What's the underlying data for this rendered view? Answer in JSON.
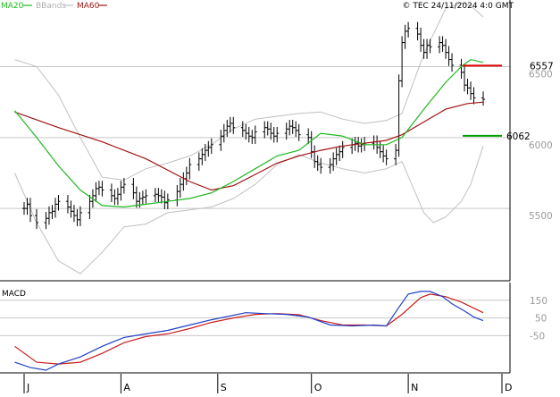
{
  "chart_data": {
    "type": "line",
    "copyright": "© TEC 24/11/2024 4:0 GMT",
    "legend": [
      {
        "label": "MA20",
        "color": "#1fb81f"
      },
      {
        "label": "BBands",
        "color": "#c0c0c0"
      },
      {
        "label": "MA60",
        "color": "#a01414"
      }
    ],
    "price_axis": {
      "ylim": [
        5040,
        7020
      ],
      "ticks": [
        {
          "label": "6500",
          "value": 6500
        },
        {
          "label": "6000",
          "value": 6000
        },
        {
          "label": "5500",
          "value": 5500
        }
      ]
    },
    "x_axis": {
      "start": "2024-07-01",
      "end": "2024-12-10",
      "ticks": [
        {
          "label": "J",
          "date": "2024-07-01"
        },
        {
          "label": "A",
          "date": "2024-08-01"
        },
        {
          "label": "S",
          "date": "2024-09-01"
        },
        {
          "label": "O",
          "date": "2024-10-01"
        },
        {
          "label": "N",
          "date": "2024-11-01"
        },
        {
          "label": "D",
          "date": "2024-12-01"
        }
      ]
    },
    "levels": [
      {
        "label": "6557",
        "value": 6557,
        "color": "#e00000"
      },
      {
        "label": "6062",
        "value": 6062,
        "color": "#00a000"
      }
    ],
    "series_points": {
      "ma20": [
        [
          "2024-06-28",
          6240
        ],
        [
          "2024-07-05",
          6050
        ],
        [
          "2024-07-12",
          5850
        ],
        [
          "2024-07-19",
          5680
        ],
        [
          "2024-07-26",
          5570
        ],
        [
          "2024-08-02",
          5560
        ],
        [
          "2024-08-09",
          5580
        ],
        [
          "2024-08-16",
          5600
        ],
        [
          "2024-08-23",
          5620
        ],
        [
          "2024-08-30",
          5660
        ],
        [
          "2024-09-06",
          5740
        ],
        [
          "2024-09-13",
          5830
        ],
        [
          "2024-09-20",
          5920
        ],
        [
          "2024-09-27",
          5960
        ],
        [
          "2024-10-04",
          6080
        ],
        [
          "2024-10-11",
          6060
        ],
        [
          "2024-10-18",
          6000
        ],
        [
          "2024-10-25",
          6000
        ],
        [
          "2024-10-30",
          6050
        ],
        [
          "2024-11-06",
          6250
        ],
        [
          "2024-11-13",
          6440
        ],
        [
          "2024-11-18",
          6550
        ],
        [
          "2024-11-21",
          6600
        ],
        [
          "2024-11-25",
          6580
        ]
      ],
      "ma60": [
        [
          "2024-06-28",
          6230
        ],
        [
          "2024-07-12",
          6120
        ],
        [
          "2024-07-26",
          6020
        ],
        [
          "2024-08-09",
          5900
        ],
        [
          "2024-08-23",
          5740
        ],
        [
          "2024-08-30",
          5680
        ],
        [
          "2024-09-06",
          5710
        ],
        [
          "2024-09-13",
          5790
        ],
        [
          "2024-09-20",
          5870
        ],
        [
          "2024-09-27",
          5920
        ],
        [
          "2024-10-04",
          5960
        ],
        [
          "2024-10-11",
          5990
        ],
        [
          "2024-10-18",
          6010
        ],
        [
          "2024-10-25",
          6030
        ],
        [
          "2024-10-30",
          6070
        ],
        [
          "2024-11-06",
          6160
        ],
        [
          "2024-11-13",
          6250
        ],
        [
          "2024-11-20",
          6290
        ],
        [
          "2024-11-25",
          6300
        ]
      ],
      "bb_upper": [
        [
          "2024-06-28",
          6600
        ],
        [
          "2024-07-05",
          6550
        ],
        [
          "2024-07-12",
          6350
        ],
        [
          "2024-07-19",
          6050
        ],
        [
          "2024-07-26",
          5770
        ],
        [
          "2024-08-02",
          5750
        ],
        [
          "2024-08-09",
          5830
        ],
        [
          "2024-08-16",
          5870
        ],
        [
          "2024-08-23",
          5920
        ],
        [
          "2024-08-30",
          6000
        ],
        [
          "2024-09-06",
          6110
        ],
        [
          "2024-09-13",
          6180
        ],
        [
          "2024-09-20",
          6200
        ],
        [
          "2024-09-27",
          6220
        ],
        [
          "2024-10-04",
          6230
        ],
        [
          "2024-10-11",
          6180
        ],
        [
          "2024-10-18",
          6150
        ],
        [
          "2024-10-25",
          6170
        ],
        [
          "2024-10-30",
          6220
        ],
        [
          "2024-11-06",
          6640
        ],
        [
          "2024-11-13",
          6960
        ],
        [
          "2024-11-18",
          7000
        ],
        [
          "2024-11-21",
          6980
        ],
        [
          "2024-11-25",
          6900
        ]
      ],
      "bb_lower": [
        [
          "2024-06-28",
          5800
        ],
        [
          "2024-07-05",
          5450
        ],
        [
          "2024-07-12",
          5180
        ],
        [
          "2024-07-19",
          5090
        ],
        [
          "2024-07-26",
          5240
        ],
        [
          "2024-08-02",
          5420
        ],
        [
          "2024-08-09",
          5440
        ],
        [
          "2024-08-16",
          5520
        ],
        [
          "2024-08-23",
          5540
        ],
        [
          "2024-08-30",
          5560
        ],
        [
          "2024-09-06",
          5620
        ],
        [
          "2024-09-13",
          5720
        ],
        [
          "2024-09-20",
          5860
        ],
        [
          "2024-09-27",
          5930
        ],
        [
          "2024-10-04",
          5870
        ],
        [
          "2024-10-11",
          5830
        ],
        [
          "2024-10-18",
          5800
        ],
        [
          "2024-10-25",
          5830
        ],
        [
          "2024-10-30",
          5880
        ],
        [
          "2024-11-06",
          5520
        ],
        [
          "2024-11-09",
          5450
        ],
        [
          "2024-11-13",
          5490
        ],
        [
          "2024-11-18",
          5600
        ],
        [
          "2024-11-21",
          5720
        ],
        [
          "2024-11-25",
          5990
        ]
      ],
      "ohlc_close": [
        [
          "2024-07-01",
          5550
        ],
        [
          "2024-07-02",
          5580
        ],
        [
          "2024-07-03",
          5500
        ],
        [
          "2024-07-05",
          5450
        ],
        [
          "2024-07-08",
          5480
        ],
        [
          "2024-07-09",
          5520
        ],
        [
          "2024-07-10",
          5530
        ],
        [
          "2024-07-11",
          5580
        ],
        [
          "2024-07-12",
          5600
        ],
        [
          "2024-07-15",
          5560
        ],
        [
          "2024-07-16",
          5530
        ],
        [
          "2024-07-17",
          5500
        ],
        [
          "2024-07-18",
          5470
        ],
        [
          "2024-07-19",
          5520
        ],
        [
          "2024-07-22",
          5600
        ],
        [
          "2024-07-23",
          5640
        ],
        [
          "2024-07-24",
          5690
        ],
        [
          "2024-07-25",
          5700
        ],
        [
          "2024-07-26",
          5680
        ],
        [
          "2024-07-29",
          5640
        ],
        [
          "2024-07-30",
          5620
        ],
        [
          "2024-07-31",
          5650
        ],
        [
          "2024-08-01",
          5700
        ],
        [
          "2024-08-02",
          5720
        ],
        [
          "2024-08-05",
          5660
        ],
        [
          "2024-08-06",
          5600
        ],
        [
          "2024-08-07",
          5620
        ],
        [
          "2024-08-08",
          5630
        ],
        [
          "2024-08-09",
          5640
        ],
        [
          "2024-08-12",
          5650
        ],
        [
          "2024-08-13",
          5640
        ],
        [
          "2024-08-14",
          5630
        ],
        [
          "2024-08-15",
          5590
        ],
        [
          "2024-08-16",
          5610
        ],
        [
          "2024-08-19",
          5670
        ],
        [
          "2024-08-20",
          5720
        ],
        [
          "2024-08-21",
          5760
        ],
        [
          "2024-08-22",
          5800
        ],
        [
          "2024-08-23",
          5860
        ],
        [
          "2024-08-26",
          5900
        ],
        [
          "2024-08-27",
          5930
        ],
        [
          "2024-08-28",
          5960
        ],
        [
          "2024-08-29",
          5980
        ],
        [
          "2024-08-30",
          6000
        ],
        [
          "2024-09-02",
          6060
        ],
        [
          "2024-09-03",
          6100
        ],
        [
          "2024-09-04",
          6130
        ],
        [
          "2024-09-05",
          6150
        ],
        [
          "2024-09-06",
          6120
        ],
        [
          "2024-09-09",
          6100
        ],
        [
          "2024-09-10",
          6080
        ],
        [
          "2024-09-11",
          6060
        ],
        [
          "2024-09-12",
          6050
        ],
        [
          "2024-09-13",
          6090
        ],
        [
          "2024-09-16",
          6120
        ],
        [
          "2024-09-17",
          6110
        ],
        [
          "2024-09-18",
          6080
        ],
        [
          "2024-09-19",
          6060
        ],
        [
          "2024-09-20",
          6080
        ],
        [
          "2024-09-23",
          6110
        ],
        [
          "2024-09-24",
          6130
        ],
        [
          "2024-09-25",
          6120
        ],
        [
          "2024-09-26",
          6100
        ],
        [
          "2024-09-27",
          6070
        ],
        [
          "2024-09-30",
          6050
        ],
        [
          "2024-10-01",
          5950
        ],
        [
          "2024-10-02",
          5880
        ],
        [
          "2024-10-03",
          5860
        ],
        [
          "2024-10-04",
          5840
        ],
        [
          "2024-10-07",
          5860
        ],
        [
          "2024-10-08",
          5900
        ],
        [
          "2024-10-09",
          5930
        ],
        [
          "2024-10-10",
          5950
        ],
        [
          "2024-10-11",
          5980
        ],
        [
          "2024-10-14",
          6000
        ],
        [
          "2024-10-15",
          6010
        ],
        [
          "2024-10-16",
          5990
        ],
        [
          "2024-10-17",
          6000
        ],
        [
          "2024-10-18",
          6010
        ],
        [
          "2024-10-21",
          6020
        ],
        [
          "2024-10-22",
          5980
        ],
        [
          "2024-10-23",
          5950
        ],
        [
          "2024-10-24",
          5920
        ],
        [
          "2024-10-25",
          5900
        ],
        [
          "2024-10-28",
          5960
        ],
        [
          "2024-10-29",
          6450
        ],
        [
          "2024-10-30",
          6720
        ],
        [
          "2024-10-31",
          6800
        ],
        [
          "2024-11-01",
          6820
        ],
        [
          "2024-11-04",
          6780
        ],
        [
          "2024-11-05",
          6700
        ],
        [
          "2024-11-06",
          6650
        ],
        [
          "2024-11-07",
          6700
        ],
        [
          "2024-11-08",
          6690
        ],
        [
          "2024-11-11",
          6720
        ],
        [
          "2024-11-12",
          6700
        ],
        [
          "2024-11-13",
          6650
        ],
        [
          "2024-11-14",
          6600
        ],
        [
          "2024-11-15",
          6560
        ],
        [
          "2024-11-18",
          6510
        ],
        [
          "2024-11-19",
          6420
        ],
        [
          "2024-11-20",
          6400
        ],
        [
          "2024-11-21",
          6360
        ],
        [
          "2024-11-22",
          6330
        ],
        [
          "2024-11-25",
          6320
        ]
      ]
    },
    "macd": {
      "label": "MACD",
      "ylim": [
        -260,
        250
      ],
      "ticks": [
        {
          "label": "150",
          "value": 150
        },
        {
          "label": "50",
          "value": 50
        },
        {
          "label": "-50",
          "value": -50
        }
      ],
      "macd_line": [
        [
          "2024-06-28",
          -200
        ],
        [
          "2024-07-03",
          -230
        ],
        [
          "2024-07-08",
          -245
        ],
        [
          "2024-07-12",
          -210
        ],
        [
          "2024-07-19",
          -170
        ],
        [
          "2024-07-26",
          -110
        ],
        [
          "2024-08-02",
          -60
        ],
        [
          "2024-08-09",
          -40
        ],
        [
          "2024-08-16",
          -20
        ],
        [
          "2024-08-23",
          10
        ],
        [
          "2024-08-30",
          40
        ],
        [
          "2024-09-06",
          65
        ],
        [
          "2024-09-10",
          80
        ],
        [
          "2024-09-16",
          75
        ],
        [
          "2024-09-23",
          70
        ],
        [
          "2024-09-30",
          55
        ],
        [
          "2024-10-07",
          10
        ],
        [
          "2024-10-14",
          5
        ],
        [
          "2024-10-21",
          10
        ],
        [
          "2024-10-25",
          5
        ],
        [
          "2024-10-29",
          110
        ],
        [
          "2024-11-01",
          185
        ],
        [
          "2024-11-05",
          200
        ],
        [
          "2024-11-08",
          200
        ],
        [
          "2024-11-12",
          170
        ],
        [
          "2024-11-15",
          130
        ],
        [
          "2024-11-19",
          90
        ],
        [
          "2024-11-22",
          55
        ],
        [
          "2024-11-25",
          35
        ]
      ],
      "signal_line": [
        [
          "2024-06-28",
          -110
        ],
        [
          "2024-07-05",
          -200
        ],
        [
          "2024-07-12",
          -210
        ],
        [
          "2024-07-19",
          -200
        ],
        [
          "2024-07-26",
          -150
        ],
        [
          "2024-08-02",
          -90
        ],
        [
          "2024-08-09",
          -55
        ],
        [
          "2024-08-16",
          -40
        ],
        [
          "2024-08-23",
          -10
        ],
        [
          "2024-08-30",
          25
        ],
        [
          "2024-09-06",
          50
        ],
        [
          "2024-09-13",
          70
        ],
        [
          "2024-09-20",
          75
        ],
        [
          "2024-09-27",
          68
        ],
        [
          "2024-10-04",
          35
        ],
        [
          "2024-10-11",
          10
        ],
        [
          "2024-10-18",
          10
        ],
        [
          "2024-10-25",
          5
        ],
        [
          "2024-10-30",
          70
        ],
        [
          "2024-11-05",
          165
        ],
        [
          "2024-11-08",
          185
        ],
        [
          "2024-11-13",
          170
        ],
        [
          "2024-11-18",
          140
        ],
        [
          "2024-11-22",
          105
        ],
        [
          "2024-11-25",
          80
        ]
      ]
    },
    "colors": {
      "price_bar": "#000000",
      "ma20": "#1fb81f",
      "ma60": "#a01414",
      "bbands": "#c0c0c0",
      "macd_line": "#2040c8",
      "signal_line": "#c81e1e",
      "grid": "#c8c8c8",
      "axis": "#000000",
      "tick_label": "#9a9a9a"
    }
  }
}
